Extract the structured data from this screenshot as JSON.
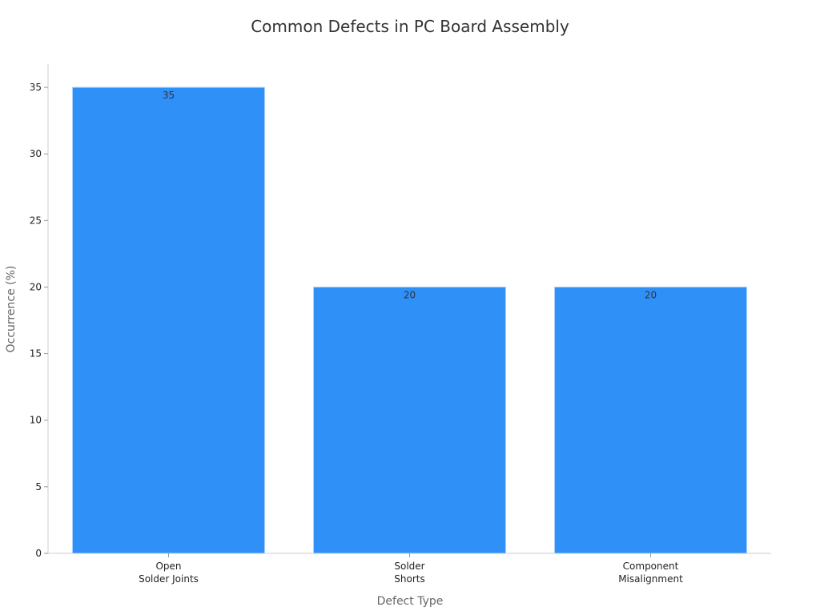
{
  "chart_data": {
    "type": "bar",
    "title": "Common Defects in PC Board Assembly",
    "xlabel": "Defect Type",
    "ylabel": "Occurrence (%)",
    "categories": [
      [
        "Open",
        "Solder Joints"
      ],
      [
        "Solder",
        "Shorts"
      ],
      [
        "Component",
        "Misalignment"
      ]
    ],
    "values": [
      35,
      20,
      20
    ],
    "data_labels": [
      "35",
      "20",
      "20"
    ],
    "yticks": [
      0,
      5,
      10,
      15,
      20,
      25,
      30,
      35
    ],
    "ylim": [
      0,
      36.75
    ],
    "grid": false,
    "legend": "none",
    "bar_color": "#2f91f8",
    "bar_edge_color": "#a9d0fb"
  }
}
